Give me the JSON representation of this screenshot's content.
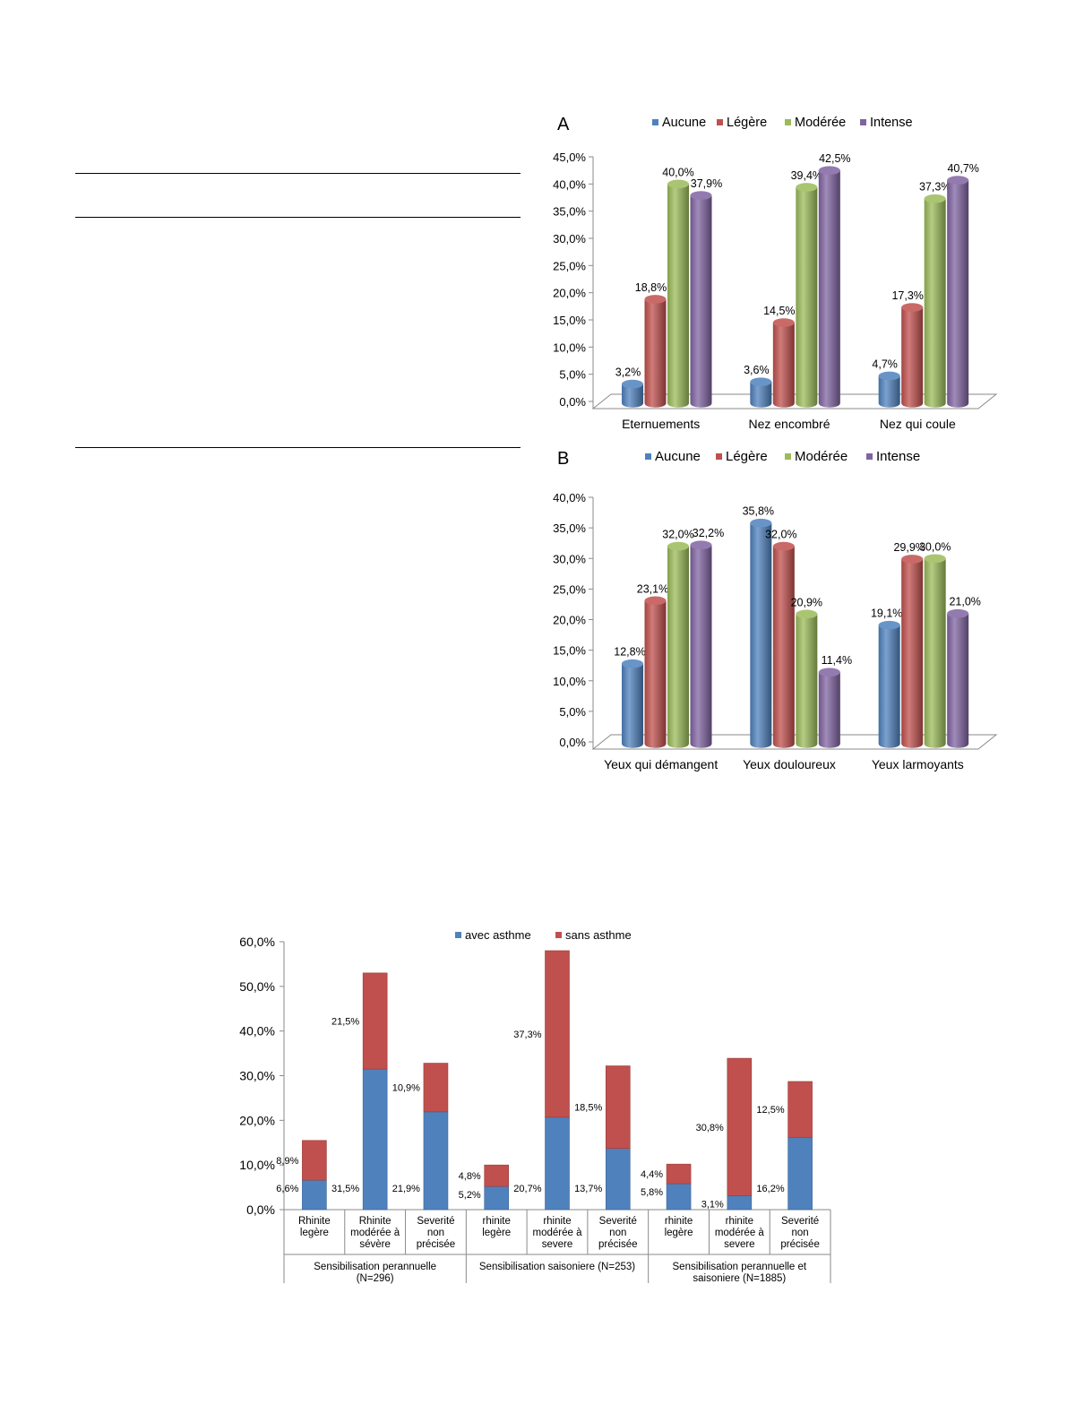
{
  "colors": {
    "aucune": "#4f81bd",
    "legere": "#c0504d",
    "moderee": "#9bbb59",
    "intense": "#8064a2",
    "avec_asthme": "#4f81bd",
    "sans_asthme": "#c0504d"
  },
  "chart_data": [
    {
      "id": "A",
      "type": "bar",
      "panel_label": "A",
      "categories": [
        "Eternuements",
        "Nez encombré",
        "Nez qui coule"
      ],
      "series": [
        {
          "name": "Aucune",
          "values": [
            3.2,
            3.6,
            4.7
          ],
          "labels": [
            "3,2%",
            "3,6%",
            "4,7%"
          ]
        },
        {
          "name": "Légère",
          "values": [
            18.8,
            14.5,
            17.3
          ],
          "labels": [
            "18,8%",
            "14,5%",
            "17,3%"
          ]
        },
        {
          "name": "Modérée",
          "values": [
            40.0,
            39.4,
            37.3
          ],
          "labels": [
            "40,0%",
            "39,4%",
            "37,3%"
          ]
        },
        {
          "name": "Intense",
          "values": [
            37.9,
            42.5,
            40.7
          ],
          "labels": [
            "37,9%",
            "42,5%",
            "40,7%"
          ]
        }
      ],
      "ylim": [
        0,
        45
      ],
      "yticks": [
        "0,0%",
        "5,0%",
        "10,0%",
        "15,0%",
        "20,0%",
        "25,0%",
        "30,0%",
        "35,0%",
        "40,0%",
        "45,0%"
      ],
      "legend_position": "top"
    },
    {
      "id": "B",
      "type": "bar",
      "panel_label": "B",
      "categories": [
        "Yeux qui démangent",
        "Yeux douloureux",
        "Yeux larmoyants"
      ],
      "series": [
        {
          "name": "Aucune",
          "values": [
            12.8,
            35.8,
            19.1
          ],
          "labels": [
            "12,8%",
            "35,8%",
            "19,1%"
          ]
        },
        {
          "name": "Légère",
          "values": [
            23.1,
            32.0,
            29.9
          ],
          "labels": [
            "23,1%",
            "32,0%",
            "29,9%"
          ]
        },
        {
          "name": "Modérée",
          "values": [
            32.0,
            20.9,
            30.0
          ],
          "labels": [
            "32,0%",
            "20,9%",
            "30,0%"
          ]
        },
        {
          "name": "Intense",
          "values": [
            32.2,
            11.4,
            21.0
          ],
          "labels": [
            "32,2%",
            "11,4%",
            "21,0%"
          ]
        }
      ],
      "ylim": [
        0,
        40
      ],
      "yticks": [
        "0,0%",
        "5,0%",
        "10,0%",
        "15,0%",
        "20,0%",
        "25,0%",
        "30,0%",
        "35,0%",
        "40,0%"
      ],
      "legend_position": "top"
    },
    {
      "id": "C",
      "type": "bar",
      "stacked": true,
      "categories": [
        [
          "Rhinite",
          "legère"
        ],
        [
          "Rhinite",
          "modérée à",
          "sévère"
        ],
        [
          "Severité",
          "non",
          "précisée"
        ],
        [
          "rhinite",
          "legère"
        ],
        [
          "rhinite",
          "modérée à",
          "severe"
        ],
        [
          "Severité",
          "non",
          "précisée"
        ],
        [
          "rhinite",
          "legère"
        ],
        [
          "rhinite",
          "modérée à",
          "severe"
        ],
        [
          "Severité",
          "non",
          "précisée"
        ]
      ],
      "groups": [
        [
          "Sensibilisation perannuelle",
          "(N=296)"
        ],
        [
          "Sensibilisation saisoniere (N=253)"
        ],
        [
          "Sensibilisation perannuelle et",
          "saisoniere (N=1885)"
        ]
      ],
      "series": [
        {
          "name": "avec asthme",
          "values": [
            6.6,
            31.5,
            21.9,
            5.2,
            20.7,
            13.7,
            5.8,
            3.1,
            16.2
          ],
          "labels": [
            "6,6%",
            "31,5%",
            "21,9%",
            "5,2%",
            "20,7%",
            "13,7%",
            "5,8%",
            "3,1%",
            "16,2%"
          ]
        },
        {
          "name": "sans asthme",
          "values": [
            8.9,
            21.5,
            10.9,
            4.8,
            37.3,
            18.5,
            4.4,
            30.8,
            12.5
          ],
          "labels": [
            "8,9%",
            "21,5%",
            "10,9%",
            "4,8%",
            "37,3%",
            "18,5%",
            "4,4%",
            "30,8%",
            "12,5%"
          ]
        }
      ],
      "ylim": [
        0,
        60
      ],
      "yticks": [
        "0,0%",
        "10,0%",
        "20,0%",
        "30,0%",
        "40,0%",
        "50,0%",
        "60,0%"
      ],
      "legend_position": "top"
    }
  ]
}
